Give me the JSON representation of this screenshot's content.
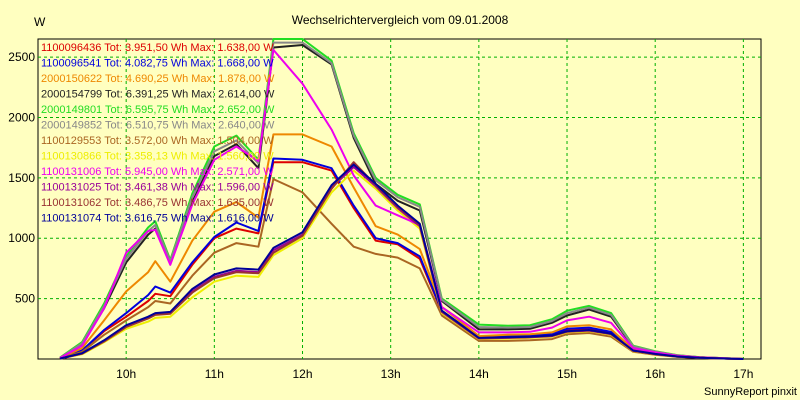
{
  "chart_data": {
    "type": "line",
    "title": "Wechselrichtervergleich vom 09.01.2008",
    "ylabel": "W",
    "xlabel": "",
    "credit": "SunnyReport pinxit",
    "xlim": [
      9,
      17.2
    ],
    "ylim": [
      0,
      2650
    ],
    "xticks": [
      10,
      11,
      12,
      13,
      14,
      15,
      16,
      17
    ],
    "xtick_labels": [
      "10h",
      "11h",
      "12h",
      "13h",
      "14h",
      "15h",
      "16h",
      "17h"
    ],
    "yticks": [
      500,
      1000,
      1500,
      2000,
      2500
    ],
    "ytick_labels": [
      "500",
      "1000",
      "1500",
      "2000",
      "2500"
    ],
    "grid": true,
    "legend_position": "top-left",
    "x": [
      9.25,
      9.5,
      9.75,
      10.0,
      10.25,
      10.33,
      10.5,
      10.75,
      11.0,
      11.25,
      11.5,
      11.67,
      12.0,
      12.33,
      12.58,
      12.83,
      13.08,
      13.33,
      13.58,
      14.0,
      14.33,
      14.58,
      14.83,
      15.0,
      15.25,
      15.5,
      15.75,
      16.0,
      16.25,
      16.5,
      16.83,
      17.0
    ],
    "series": [
      {
        "name": "1100096436 Tot: 3.951,50 Wh Max: 1.638,00 W",
        "color": "#dd0000",
        "values": [
          5,
          70,
          230,
          350,
          480,
          540,
          520,
          780,
          1000,
          1080,
          1040,
          1630,
          1630,
          1560,
          1250,
          980,
          950,
          830,
          390,
          175,
          185,
          190,
          200,
          240,
          255,
          220,
          70,
          40,
          20,
          10,
          3,
          0
        ]
      },
      {
        "name": "1100096541 Tot: 4.082,75 Wh Max: 1.668,00 W",
        "color": "#0000dd",
        "values": [
          5,
          70,
          240,
          380,
          530,
          600,
          550,
          800,
          1010,
          1130,
          1060,
          1660,
          1650,
          1580,
          1270,
          1000,
          960,
          850,
          400,
          180,
          190,
          195,
          205,
          250,
          260,
          225,
          70,
          40,
          20,
          10,
          3,
          0
        ]
      },
      {
        "name": "2000150622 Tot: 4.690,25 Wh Max: 1.878,00 W",
        "color": "#ee8800",
        "values": [
          5,
          90,
          320,
          560,
          720,
          810,
          640,
          980,
          1220,
          1300,
          1170,
          1860,
          1860,
          1760,
          1420,
          1100,
          1030,
          910,
          430,
          190,
          200,
          205,
          220,
          270,
          280,
          245,
          80,
          45,
          22,
          12,
          4,
          0
        ]
      },
      {
        "name": "2000154799 Tot: 6.391,25 Wh Max: 2.614,00 W",
        "color": "#222222",
        "values": [
          10,
          120,
          420,
          800,
          1030,
          1080,
          800,
          1300,
          1680,
          1780,
          1580,
          2580,
          2600,
          2440,
          1830,
          1450,
          1310,
          1230,
          480,
          245,
          245,
          250,
          300,
          360,
          410,
          350,
          100,
          60,
          30,
          15,
          5,
          0
        ]
      },
      {
        "name": "2000149801 Tot: 6.595,75 Wh Max: 2.652,00 W",
        "color": "#22dd22",
        "values": [
          12,
          140,
          460,
          850,
          1090,
          1140,
          820,
          1370,
          1760,
          1850,
          1650,
          2650,
          2650,
          2470,
          1870,
          1500,
          1360,
          1280,
          500,
          285,
          275,
          280,
          330,
          400,
          440,
          380,
          110,
          65,
          32,
          16,
          5,
          0
        ]
      },
      {
        "name": "2000149852 Tot: 6.510,75 Wh Max: 2.640,00 W",
        "color": "#888888",
        "values": [
          10,
          130,
          440,
          830,
          1060,
          1110,
          810,
          1340,
          1720,
          1810,
          1620,
          2620,
          2620,
          2450,
          1850,
          1480,
          1340,
          1260,
          490,
          265,
          260,
          265,
          315,
          380,
          425,
          365,
          105,
          62,
          31,
          15,
          5,
          0
        ]
      },
      {
        "name": "1100129553 Tot: 3.572,00 Wh Max: 1.504,00 W",
        "color": "#aa6622",
        "values": [
          5,
          60,
          200,
          320,
          430,
          480,
          460,
          690,
          880,
          960,
          930,
          1490,
          1380,
          1120,
          930,
          870,
          840,
          750,
          360,
          150,
          150,
          155,
          165,
          205,
          215,
          185,
          60,
          35,
          18,
          9,
          3,
          0
        ]
      },
      {
        "name": "1100130866 Tot: 3.358,13 Wh Max: 1.560,00 W",
        "color": "#eeee00",
        "values": [
          3,
          40,
          140,
          250,
          310,
          340,
          350,
          510,
          640,
          690,
          680,
          860,
          1000,
          1380,
          1560,
          1410,
          1230,
          1080,
          380,
          165,
          170,
          175,
          185,
          220,
          230,
          200,
          65,
          38,
          19,
          10,
          3,
          0
        ]
      },
      {
        "name": "1100131006 Tot: 5.945,00 Wh Max: 2.571,00 W",
        "color": "#ee00ee",
        "values": [
          8,
          110,
          420,
          880,
          1060,
          1070,
          780,
          1280,
          1650,
          1760,
          1640,
          2560,
          2280,
          1900,
          1520,
          1270,
          1190,
          1110,
          430,
          220,
          220,
          225,
          260,
          320,
          350,
          300,
          90,
          55,
          27,
          14,
          5,
          0
        ]
      },
      {
        "name": "1100131025 Tot: 3.461,38 Wh Max: 1.596,00 W",
        "color": "#990099",
        "values": [
          3,
          45,
          150,
          270,
          340,
          370,
          380,
          560,
          680,
          730,
          720,
          900,
          1030,
          1420,
          1590,
          1430,
          1250,
          1100,
          390,
          170,
          175,
          180,
          190,
          225,
          235,
          205,
          68,
          40,
          20,
          10,
          3,
          0
        ]
      },
      {
        "name": "1100131062 Tot: 3.486,75 Wh Max: 1.635,00 W",
        "color": "#993333",
        "values": [
          3,
          45,
          145,
          265,
          335,
          365,
          375,
          550,
          670,
          720,
          710,
          880,
          1020,
          1410,
          1630,
          1440,
          1260,
          1110,
          395,
          172,
          177,
          182,
          192,
          228,
          238,
          208,
          68,
          40,
          20,
          10,
          3,
          0
        ]
      },
      {
        "name": "1100131074 Tot: 3.616,75 Wh Max: 1.616,00 W",
        "color": "#000099",
        "values": [
          3,
          48,
          155,
          280,
          350,
          380,
          390,
          580,
          700,
          750,
          740,
          920,
          1050,
          1440,
          1610,
          1450,
          1270,
          1120,
          400,
          175,
          180,
          185,
          195,
          230,
          240,
          210,
          70,
          42,
          21,
          11,
          3,
          0
        ]
      }
    ]
  }
}
